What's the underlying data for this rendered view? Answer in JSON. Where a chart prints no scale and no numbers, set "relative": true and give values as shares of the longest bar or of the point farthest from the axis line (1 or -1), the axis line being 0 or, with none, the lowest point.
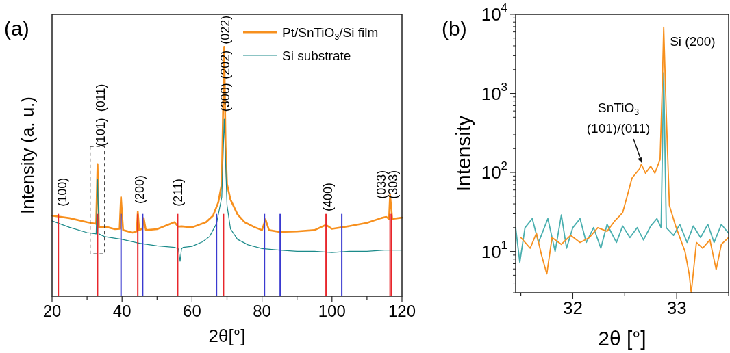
{
  "chart_data": [
    {
      "type": "line",
      "title": "(a)",
      "xlabel": "2θ[°]",
      "ylabel": "Intensity (a. u.)",
      "relative": true,
      "legend": "top right",
      "xlim": [
        20,
        120
      ],
      "xticks": [
        20,
        {
          "value": 30,
          "label": null
        },
        40,
        {
          "value": 50,
          "label": null
        },
        60,
        {
          "value": 70,
          "label": null
        },
        80,
        {
          "value": 90,
          "label": null
        },
        100,
        {
          "value": 110,
          "label": null
        },
        120
      ],
      "series": [
        {
          "name": "Pt/SnTiO$_{3}$/Si film",
          "color": "#f7901e",
          "x": [
            20,
            25,
            30,
            32.6,
            33,
            33.4,
            36,
            38,
            39.3,
            39.7,
            40.3,
            43,
            44.2,
            44.5,
            44.9,
            45.8,
            46.2,
            46.8,
            50,
            55,
            56,
            57,
            60,
            64,
            66,
            67.5,
            68.5,
            69.2,
            69.6,
            70,
            71,
            73,
            75,
            78,
            80,
            81,
            82,
            85,
            90,
            95,
            98.3,
            100,
            105,
            110,
            114,
            115.5,
            116.3,
            116.6,
            117.2,
            120
          ],
          "values": [
            0.323,
            0.313,
            0.297,
            0.29,
            0.53,
            0.276,
            0.276,
            0.269,
            0.27,
            0.397,
            0.265,
            0.255,
            0.26,
            0.339,
            0.265,
            0.27,
            0.313,
            0.265,
            0.269,
            0.297,
            0.279,
            0.28,
            0.276,
            0.297,
            0.323,
            0.376,
            0.45,
            1.0,
            0.6,
            0.45,
            0.387,
            0.328,
            0.297,
            0.276,
            0.265,
            0.308,
            0.265,
            0.258,
            0.26,
            0.265,
            0.286,
            0.27,
            0.281,
            0.294,
            0.313,
            0.318,
            0.31,
            0.408,
            0.31,
            0.315
          ]
        },
        {
          "name": "Si substrate",
          "color": "#1b8a8a",
          "x": [
            20,
            25,
            30,
            32.6,
            33,
            33.4,
            35,
            40,
            45,
            50,
            55,
            56.1,
            56.6,
            57.0,
            57.5,
            60,
            63,
            65,
            67,
            68.5,
            69.2,
            70,
            71,
            73,
            76,
            80,
            85,
            90,
            95,
            100,
            105,
            110,
            115,
            120
          ],
          "values": [
            0.302,
            0.276,
            0.255,
            0.25,
            0.47,
            0.25,
            0.239,
            0.228,
            0.212,
            0.202,
            0.196,
            0.19,
            0.14,
            0.19,
            0.196,
            0.2,
            0.218,
            0.239,
            0.291,
            0.397,
            0.71,
            0.365,
            0.27,
            0.228,
            0.206,
            0.191,
            0.185,
            0.18,
            0.18,
            0.175,
            0.18,
            0.18,
            0.185,
            0.185
          ]
        },
        {
          "type": "bar",
          "color": "#e8262b",
          "x": [
            21.8,
            33.0,
            44.5,
            55.9,
            69.0,
            98.3,
            116.6,
            117.0
          ],
          "values": [
            0.33,
            0.33,
            0.33,
            0.33,
            0.33,
            0.33,
            0.33,
            0.33
          ]
        },
        {
          "type": "bar",
          "color": "#3a3ad0",
          "x": [
            39.7,
            45.9,
            67.0,
            80.7,
            85.2,
            102.8
          ],
          "values": [
            0.33,
            0.33,
            0.33,
            0.33,
            0.33,
            0.33
          ]
        }
      ],
      "annotations": [
        "(100)",
        "(101)",
        "(011)",
        "(200)",
        "(211)",
        "(300)",
        "(202)",
        "(022)",
        "(400)",
        "(033)",
        "(303)"
      ]
    },
    {
      "type": "line",
      "title": "(b)",
      "xlabel": "2θ [°]",
      "ylabel": "Intensity",
      "log": "y",
      "xlim": [
        31.45,
        33.5
      ],
      "xticks": [
        {
          "value": 31.5,
          "label": null
        },
        32,
        {
          "value": 32.5,
          "label": null
        },
        33,
        {
          "value": 33.5,
          "label": null
        }
      ],
      "ylim": [
        3,
        10000
      ],
      "yticks": [
        {
          "value": 3,
          "label": null
        },
        {
          "value": 4,
          "label": null
        },
        {
          "value": 5,
          "label": null
        },
        {
          "value": 6,
          "label": null
        },
        {
          "value": 7,
          "label": null
        },
        {
          "value": 8,
          "label": null
        },
        {
          "value": 9,
          "label": null
        },
        {
          "value": 10,
          "label": "10$^{1}$"
        },
        {
          "value": 20,
          "label": null
        },
        {
          "value": 30,
          "label": null
        },
        {
          "value": 40,
          "label": null
        },
        {
          "value": 50,
          "label": null
        },
        {
          "value": 60,
          "label": null
        },
        {
          "value": 70,
          "label": null
        },
        {
          "value": 80,
          "label": null
        },
        {
          "value": 90,
          "label": null
        },
        {
          "value": 100,
          "label": "10$^{2}$"
        },
        {
          "value": 200,
          "label": null
        },
        {
          "value": 300,
          "label": null
        },
        {
          "value": 400,
          "label": null
        },
        {
          "value": 500,
          "label": null
        },
        {
          "value": 600,
          "label": null
        },
        {
          "value": 700,
          "label": null
        },
        {
          "value": 800,
          "label": null
        },
        {
          "value": 900,
          "label": null
        },
        {
          "value": 1000,
          "label": "10$^{3}$"
        },
        {
          "value": 2000,
          "label": null
        },
        {
          "value": 3000,
          "label": null
        },
        {
          "value": 4000,
          "label": null
        },
        {
          "value": 5000,
          "label": null
        },
        {
          "value": 6000,
          "label": null
        },
        {
          "value": 7000,
          "label": null
        },
        {
          "value": 8000,
          "label": null
        },
        {
          "value": 9000,
          "label": null
        },
        {
          "value": 10000,
          "label": "10$^{4}$"
        }
      ],
      "series": [
        {
          "color": "#4aafaf",
          "x": [
            31.45,
            31.49,
            31.54,
            31.61,
            31.67,
            31.76,
            31.83,
            31.89,
            31.94,
            32.0,
            32.07,
            32.13,
            32.2,
            32.27,
            32.33,
            32.42,
            32.48,
            32.55,
            32.62,
            32.68,
            32.75,
            32.81,
            32.85,
            32.875,
            32.9,
            32.97,
            33.03,
            33.1,
            33.16,
            33.23,
            33.3,
            33.36,
            33.43,
            33.5
          ],
          "values": [
            20,
            7.3,
            20,
            26,
            13,
            26,
            10,
            29,
            11,
            20,
            26,
            13,
            20,
            11,
            22,
            13,
            21,
            15,
            20,
            14,
            21,
            26,
            20,
            1830,
            20,
            16,
            22,
            13,
            21,
            15,
            22,
            13,
            22,
            17
          ]
        },
        {
          "color": "#f7901e",
          "x": [
            31.5,
            31.59,
            31.65,
            31.7,
            31.75,
            31.8,
            31.89,
            31.98,
            32.07,
            32.16,
            32.24,
            32.33,
            32.4,
            32.48,
            32.53,
            32.57,
            32.64,
            32.66,
            32.7,
            32.75,
            32.79,
            32.84,
            32.86,
            32.875,
            32.9,
            32.93,
            32.99,
            33.08,
            33.12,
            33.14,
            33.19,
            33.25,
            33.32,
            33.38,
            33.43,
            33.5
          ],
          "values": [
            15,
            11,
            17,
            8.9,
            5.2,
            15,
            12.3,
            16,
            13,
            15,
            20,
            18,
            24,
            31,
            54,
            85,
            110,
            127,
            98,
            120,
            98,
            146,
            1080,
            6900,
            550,
            38,
            21,
            10,
            5.2,
            3,
            13,
            11,
            14,
            5.9,
            12.3,
            15
          ]
        }
      ],
      "annotations": [
        {
          "text": "Si (200)",
          "x": 32.875,
          "y": 6900
        },
        {
          "text": "SnTiO$_{3}$\n(101)/(011)",
          "x": 32.67,
          "y": 130
        }
      ]
    }
  ]
}
